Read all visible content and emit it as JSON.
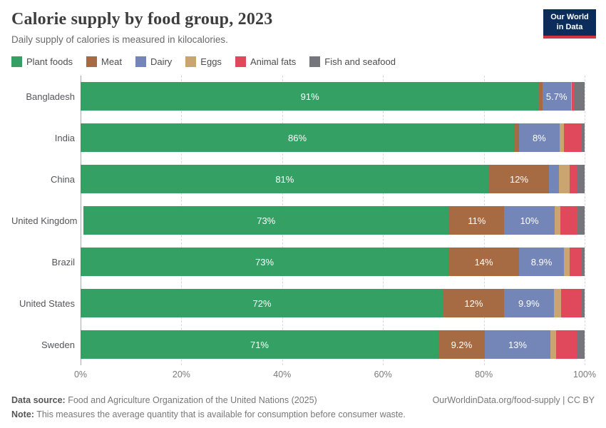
{
  "header": {
    "title": "Calorie supply by food group, 2023",
    "subtitle": "Daily supply of calories is measured in kilocalories.",
    "logo": {
      "line1": "Our World",
      "line2": "in Data",
      "bg_color": "#0c2d5b",
      "accent_color": "#d2353c"
    }
  },
  "chart_data": {
    "type": "bar",
    "stacked": true,
    "orientation": "horizontal",
    "grid": "dashed-vertical",
    "xlim": [
      0,
      100
    ],
    "x_ticks": [
      "0%",
      "20%",
      "40%",
      "60%",
      "80%",
      "100%"
    ],
    "legend_position": "top",
    "categories": [
      "Bangladesh",
      "India",
      "China",
      "United Kingdom",
      "Brazil",
      "United States",
      "Sweden"
    ],
    "series": [
      {
        "name": "Plant foods",
        "color": "#35a064",
        "values": [
          91,
          86,
          81,
          73,
          73,
          72,
          71
        ],
        "labels": [
          "91%",
          "86%",
          "81%",
          "73%",
          "73%",
          "72%",
          "71%"
        ]
      },
      {
        "name": "Meat",
        "color": "#a66b43",
        "values": [
          0.6,
          1.0,
          12,
          11,
          14,
          12,
          9.2
        ],
        "labels": [
          "",
          "",
          "12%",
          "11%",
          "14%",
          "12%",
          "9.2%"
        ]
      },
      {
        "name": "Dairy",
        "color": "#7486b7",
        "values": [
          5.7,
          8,
          1.9,
          10,
          8.9,
          9.9,
          13
        ],
        "labels": [
          "5.7%",
          "8%",
          "",
          "10%",
          "8.9%",
          "9.9%",
          "13%"
        ]
      },
      {
        "name": "Eggs",
        "color": "#c9a670",
        "values": [
          0.2,
          0.9,
          2.2,
          1.2,
          1.2,
          1.4,
          1.1
        ],
        "labels": [
          "",
          "",
          "",
          "",
          "",
          "",
          ""
        ]
      },
      {
        "name": "Animal fats",
        "color": "#e0485c",
        "values": [
          0.5,
          3.6,
          1.3,
          3.4,
          2.3,
          4.1,
          4.2
        ],
        "labels": [
          "",
          "",
          "",
          "",
          "",
          "",
          ""
        ]
      },
      {
        "name": "Fish and seafood",
        "color": "#74767c",
        "values": [
          2.0,
          0.5,
          1.6,
          1.4,
          0.6,
          0.6,
          1.5
        ],
        "labels": [
          "",
          "",
          "",
          "",
          "",
          "",
          ""
        ]
      }
    ]
  },
  "footer": {
    "source_label": "Data source:",
    "source_text": " Food and Agriculture Organization of the United Nations (2025)",
    "link": "OurWorldinData.org/food-supply | CC BY",
    "note_label": "Note:",
    "note_text": " This measures the average quantity that is available for consumption before consumer waste."
  }
}
